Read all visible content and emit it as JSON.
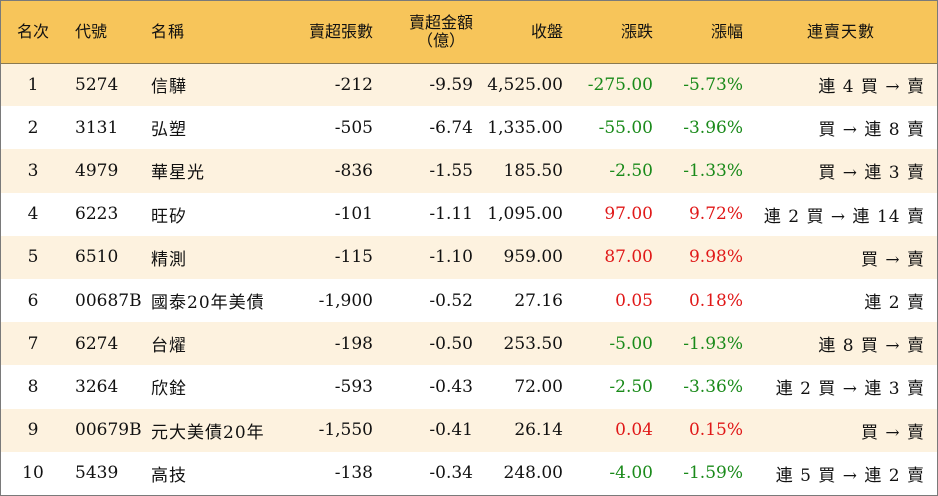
{
  "header": {
    "rank": "名次",
    "code": "代號",
    "name": "名稱",
    "sell_lots": "賣超張數",
    "sell_amount_line1": "賣超金額",
    "sell_amount_line2": "（億）",
    "close": "收盤",
    "change": "漲跌",
    "change_pct": "漲幅",
    "streak": "連賣天數"
  },
  "colors": {
    "header_bg": "#f7c55a",
    "row_alt_bg": "#fdf2df",
    "down": "#1a8a1a",
    "up": "#e01818"
  },
  "rows": [
    {
      "rank": "1",
      "code": "5274",
      "name": "信驊",
      "lots": "-212",
      "amount": "-9.59",
      "close": "4,525.00",
      "change": "-275.00",
      "pct": "-5.73%",
      "dir": "down",
      "streak": "連 4 買 → 賣"
    },
    {
      "rank": "2",
      "code": "3131",
      "name": "弘塑",
      "lots": "-505",
      "amount": "-6.74",
      "close": "1,335.00",
      "change": "-55.00",
      "pct": "-3.96%",
      "dir": "down",
      "streak": "買 → 連 8 賣"
    },
    {
      "rank": "3",
      "code": "4979",
      "name": "華星光",
      "lots": "-836",
      "amount": "-1.55",
      "close": "185.50",
      "change": "-2.50",
      "pct": "-1.33%",
      "dir": "down",
      "streak": "買 → 連 3 賣"
    },
    {
      "rank": "4",
      "code": "6223",
      "name": "旺矽",
      "lots": "-101",
      "amount": "-1.11",
      "close": "1,095.00",
      "change": "97.00",
      "pct": "9.72%",
      "dir": "up",
      "streak": "連 2 買 → 連 14 賣"
    },
    {
      "rank": "5",
      "code": "6510",
      "name": "精測",
      "lots": "-115",
      "amount": "-1.10",
      "close": "959.00",
      "change": "87.00",
      "pct": "9.98%",
      "dir": "up",
      "streak": "買 → 賣"
    },
    {
      "rank": "6",
      "code": "00687B",
      "name": "國泰20年美債",
      "lots": "-1,900",
      "amount": "-0.52",
      "close": "27.16",
      "change": "0.05",
      "pct": "0.18%",
      "dir": "up",
      "streak": "連 2 賣"
    },
    {
      "rank": "7",
      "code": "6274",
      "name": "台燿",
      "lots": "-198",
      "amount": "-0.50",
      "close": "253.50",
      "change": "-5.00",
      "pct": "-1.93%",
      "dir": "down",
      "streak": "連 8 買 → 賣"
    },
    {
      "rank": "8",
      "code": "3264",
      "name": "欣銓",
      "lots": "-593",
      "amount": "-0.43",
      "close": "72.00",
      "change": "-2.50",
      "pct": "-3.36%",
      "dir": "down",
      "streak": "連 2 買 → 連 3 賣"
    },
    {
      "rank": "9",
      "code": "00679B",
      "name": "元大美債20年",
      "lots": "-1,550",
      "amount": "-0.41",
      "close": "26.14",
      "change": "0.04",
      "pct": "0.15%",
      "dir": "up",
      "streak": "買 → 賣"
    },
    {
      "rank": "10",
      "code": "5439",
      "name": "高技",
      "lots": "-138",
      "amount": "-0.34",
      "close": "248.00",
      "change": "-4.00",
      "pct": "-1.59%",
      "dir": "down",
      "streak": "連 5 買 → 連 2 賣"
    }
  ]
}
